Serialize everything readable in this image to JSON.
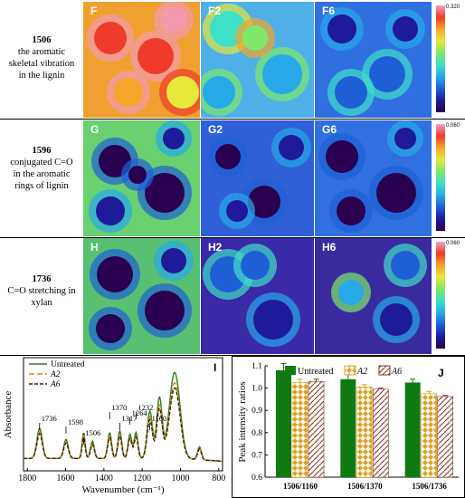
{
  "rows": [
    {
      "number": "1506",
      "desc_lines": [
        "the aromatic",
        "skeletal vibration",
        "in the lignin"
      ],
      "panels": [
        "F",
        "F2",
        "F6"
      ],
      "scale_max": "0.320"
    },
    {
      "number": "1596",
      "desc_lines": [
        "conjugated C=O",
        "in the aromatic",
        "rings of lignin"
      ],
      "panels": [
        "G",
        "G2",
        "G6"
      ],
      "scale_max": "0.060"
    },
    {
      "number": "1736",
      "desc_lines": [
        "C=O stretching in",
        "xylan"
      ],
      "panels": [
        "H",
        "H2",
        "H6"
      ],
      "scale_max": "0.060"
    }
  ],
  "panel_I": {
    "label": "I",
    "ylabel": "Absorbance",
    "xlabel": "Wavenumber (cm⁻¹)",
    "legend": [
      "Untreated",
      "A2",
      "A6"
    ],
    "colors": [
      "#2e7d1f",
      "#e08a00",
      "#3a2010"
    ],
    "xticks": [
      "1800",
      "1600",
      "1400",
      "1200",
      "1000",
      "800"
    ],
    "peak_labels": [
      "1736",
      "1598",
      "1506",
      "1370",
      "1317",
      "1264",
      "1232",
      "1160"
    ]
  },
  "chart_data": {
    "type": "bar",
    "panel_label": "J",
    "categories": [
      "1506/1160",
      "1506/1370",
      "1506/1736"
    ],
    "series": [
      {
        "name": "Untreated",
        "values": [
          1.08,
          1.04,
          1.025
        ],
        "errors": [
          0.03,
          0.02,
          0.015
        ],
        "color": "#0f7a12"
      },
      {
        "name": "A2",
        "values": [
          1.025,
          1.005,
          0.975
        ],
        "errors": [
          0.015,
          0.01,
          0.01
        ],
        "color": "#e0a020"
      },
      {
        "name": "A6",
        "values": [
          1.03,
          0.995,
          0.962
        ],
        "errors": [
          0.01,
          0.005,
          0.005
        ],
        "color": "#8b2a1a"
      }
    ],
    "ylabel": "Peak intensity ratios",
    "ylim": [
      0.6,
      1.1
    ],
    "yticks": [
      "0.6",
      "0.7",
      "0.8",
      "0.9",
      "1.0",
      "1.1"
    ],
    "legend_position": "top"
  }
}
